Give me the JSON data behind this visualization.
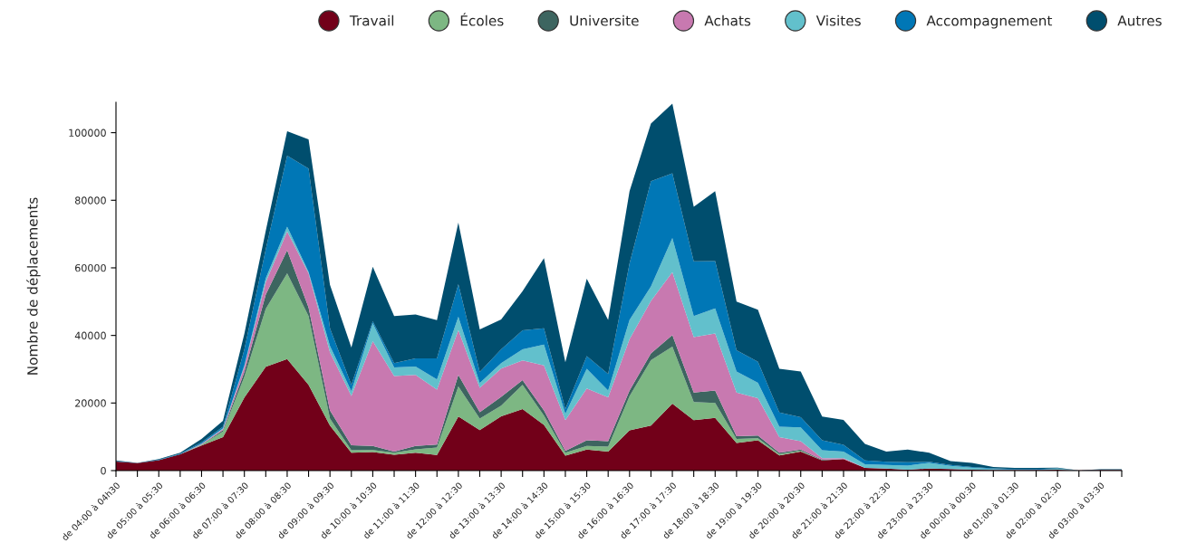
{
  "chart_data": {
    "type": "area",
    "stacked": true,
    "ylabel": "Nombre de déplacements",
    "categories": [
      "de 04:00 à 04h30",
      null,
      "de 05:00 à 05:30",
      null,
      "de 06:00 à 06:30",
      null,
      "de 07:00 à 07:30",
      null,
      "de 08:00 à 08:30",
      null,
      "de 09:00 à 09:30",
      null,
      "de 10:00 à 10:30",
      null,
      "de 11:00 à 11:30",
      null,
      "de 12:00 à 12:30",
      null,
      "de 13:00 à 13:30",
      null,
      "de 14:00 à 14:30",
      null,
      "de 15:00 à 15:30",
      null,
      "de 16:00 à 16:30",
      null,
      "de 17:00 à 17:30",
      null,
      "de 18:00 à 18:30",
      null,
      "de 19:00 à 19:30",
      null,
      "de 20:00 à 20:30",
      null,
      "de 21:00 à 21:30",
      null,
      "de 22:00 à 22:30",
      null,
      "de 23:00 à 23:30",
      null,
      "de 00:00 à 00:30",
      null,
      "de 01:00 à 01:30",
      null,
      "de 02:00 à 02:30",
      null,
      "de 03:00 à 03:30",
      null
    ],
    "series": [
      {
        "name": "Travail",
        "color": "#720019",
        "values": [
          2700,
          2200,
          3100,
          4800,
          7400,
          9900,
          21600,
          30700,
          33000,
          25400,
          13300,
          5300,
          5500,
          4700,
          5300,
          4600,
          16000,
          12000,
          16100,
          18200,
          13500,
          4400,
          6200,
          5600,
          11900,
          13300,
          19800,
          14900,
          15600,
          8200,
          9000,
          4500,
          5600,
          3000,
          3400,
          800,
          600,
          300,
          600,
          500,
          300,
          200,
          200,
          200,
          300,
          100,
          200,
          200
        ]
      },
      {
        "name": "Écoles",
        "color": "#7db783",
        "values": [
          0,
          0,
          0,
          0,
          200,
          1700,
          6200,
          17200,
          25400,
          20300,
          2100,
          700,
          600,
          600,
          1000,
          2200,
          8900,
          3400,
          3100,
          7200,
          2800,
          900,
          1100,
          1500,
          10100,
          19400,
          16900,
          5400,
          4400,
          1200,
          600,
          400,
          300,
          0,
          0,
          0,
          0,
          0,
          0,
          0,
          0,
          0,
          0,
          0,
          0,
          0,
          0,
          0
        ]
      },
      {
        "name": "Universite",
        "color": "#3d6560",
        "values": [
          0,
          0,
          0,
          0,
          100,
          400,
          1400,
          4200,
          6800,
          2600,
          2400,
          1500,
          1200,
          300,
          1000,
          900,
          3400,
          1900,
          2600,
          1400,
          1500,
          500,
          1700,
          1600,
          1700,
          2000,
          3400,
          2800,
          3700,
          800,
          800,
          400,
          300,
          200,
          0,
          0,
          0,
          0,
          0,
          0,
          0,
          0,
          0,
          0,
          0,
          0,
          0,
          0
        ]
      },
      {
        "name": "Achats",
        "color": "#c879b0",
        "values": [
          0,
          0,
          0,
          0,
          200,
          300,
          1500,
          3700,
          5600,
          10100,
          17200,
          14600,
          31000,
          22400,
          21000,
          16300,
          13300,
          7200,
          8400,
          5800,
          13300,
          9100,
          15300,
          13000,
          15200,
          15500,
          18600,
          16400,
          16900,
          12900,
          11000,
          4600,
          2500,
          500,
          300,
          0,
          0,
          0,
          0,
          0,
          0,
          0,
          0,
          0,
          0,
          0,
          0,
          0
        ]
      },
      {
        "name": "Visites",
        "color": "#62c0cc",
        "values": [
          0,
          0,
          0,
          0,
          100,
          200,
          400,
          1100,
          1400,
          400,
          1900,
          1400,
          5300,
          2500,
          2500,
          3000,
          3900,
          1400,
          1600,
          3300,
          6200,
          1900,
          5800,
          2000,
          5700,
          4300,
          10100,
          6200,
          7400,
          6200,
          4600,
          3100,
          4100,
          2300,
          1900,
          1100,
          1100,
          1200,
          1700,
          900,
          600,
          300,
          100,
          0,
          300,
          0,
          0,
          0
        ]
      },
      {
        "name": "Accompagnement",
        "color": "#0077b6",
        "values": [
          100,
          0,
          100,
          200,
          400,
          500,
          4800,
          8600,
          21000,
          30600,
          5200,
          1900,
          600,
          1300,
          2400,
          6200,
          9700,
          3300,
          4100,
          5600,
          4800,
          1400,
          3800,
          4900,
          16700,
          31100,
          19200,
          16200,
          14000,
          6300,
          6200,
          4200,
          3000,
          3000,
          2000,
          1100,
          900,
          1000,
          300,
          300,
          200,
          200,
          200,
          300,
          100,
          0,
          0,
          0
        ]
      },
      {
        "name": "Autres",
        "color": "#004e6e",
        "values": [
          200,
          100,
          200,
          300,
          1000,
          1700,
          4600,
          5500,
          7200,
          8600,
          12900,
          11000,
          16100,
          13900,
          13000,
          11300,
          18200,
          12600,
          8800,
          11600,
          20800,
          13900,
          22900,
          16000,
          21400,
          17100,
          20600,
          16200,
          20700,
          14400,
          15400,
          12900,
          13500,
          7000,
          7400,
          4900,
          3000,
          3700,
          2700,
          1100,
          1200,
          400,
          300,
          300,
          200,
          0,
          200,
          200
        ]
      }
    ],
    "ylim": [
      0,
      109000
    ],
    "yticks": [
      0,
      20000,
      40000,
      60000,
      80000,
      100000
    ],
    "legend": "top right"
  }
}
